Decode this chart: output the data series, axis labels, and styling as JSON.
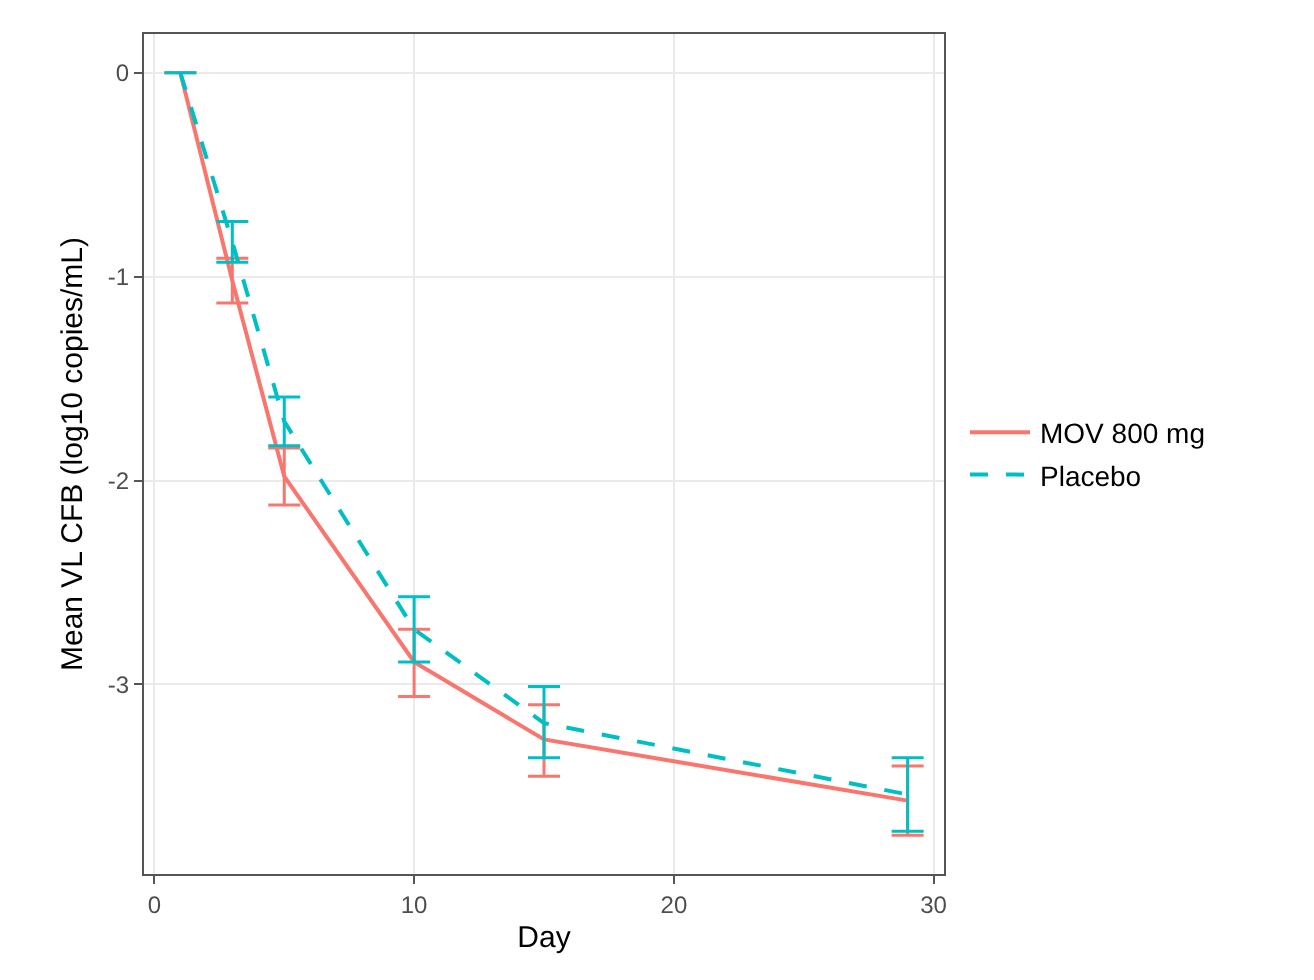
{
  "chart_data": {
    "type": "line",
    "xlabel": "Day",
    "ylabel": "Mean VL CFB (log10 copies/mL)",
    "x": [
      1,
      3,
      5,
      10,
      15,
      29
    ],
    "series": [
      {
        "name": "MOV 800 mg",
        "color": "#f8766d",
        "line_style": "solid",
        "values": [
          0,
          -1.02,
          -1.98,
          -2.89,
          -3.27,
          -3.57
        ],
        "errors": [
          null,
          [
            -1.13,
            -0.91
          ],
          [
            -2.12,
            -1.84
          ],
          [
            -3.06,
            -2.73
          ],
          [
            -3.45,
            -3.1
          ],
          [
            -3.74,
            -3.4
          ]
        ]
      },
      {
        "name": "Placebo",
        "color": "#00bfc4",
        "line_style": "dashed",
        "values": [
          0,
          -0.83,
          -1.71,
          -2.73,
          -3.19,
          -3.54
        ],
        "errors": [
          null,
          [
            -0.93,
            -0.73
          ],
          [
            -1.83,
            -1.59
          ],
          [
            -2.89,
            -2.57
          ],
          [
            -3.36,
            -3.01
          ],
          [
            -3.72,
            -3.36
          ]
        ]
      }
    ],
    "xlim": [
      -0.4,
      30.4
    ],
    "xticks": [
      0,
      10,
      20,
      30
    ],
    "ylim": [
      -3.93,
      0.19
    ],
    "yticks": [
      0,
      -1,
      -2,
      -3
    ],
    "grid": true,
    "legend": "right",
    "marker": "none"
  }
}
